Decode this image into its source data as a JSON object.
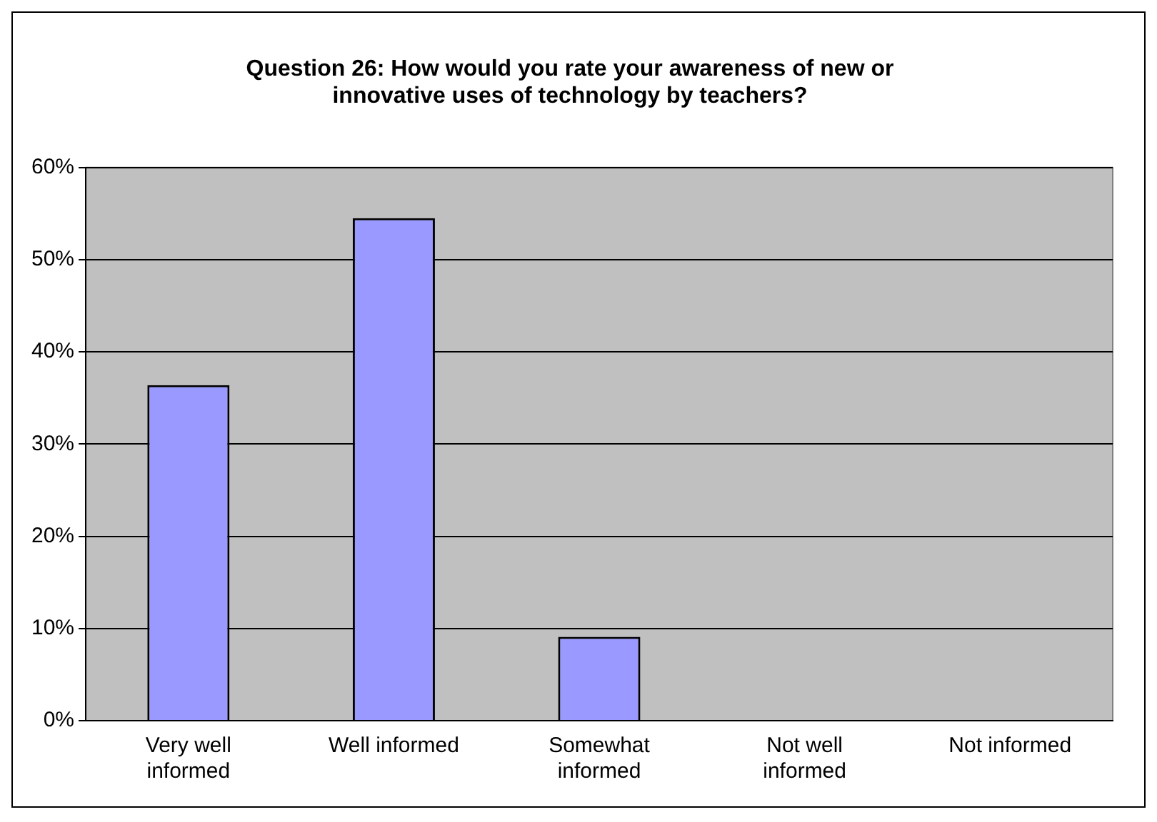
{
  "chart_data": {
    "type": "bar",
    "title": "Question 26: How would you rate your awareness of new or innovative uses of technology by teachers?",
    "categories": [
      "Very well informed",
      "Well informed",
      "Somewhat informed",
      "Not well informed",
      "Not informed"
    ],
    "values": [
      36.4,
      54.5,
      9.1,
      0,
      0
    ],
    "color": "#9999ff",
    "ylim": [
      0,
      60
    ],
    "yticks": [
      {
        "value": 0,
        "label": "0%"
      },
      {
        "value": 10,
        "label": "10%"
      },
      {
        "value": 20,
        "label": "20%"
      },
      {
        "value": 30,
        "label": "30%"
      },
      {
        "value": 40,
        "label": "40%"
      },
      {
        "value": 50,
        "label": "50%"
      },
      {
        "value": 60,
        "label": "60%"
      }
    ],
    "grid": "y",
    "legend": false
  }
}
